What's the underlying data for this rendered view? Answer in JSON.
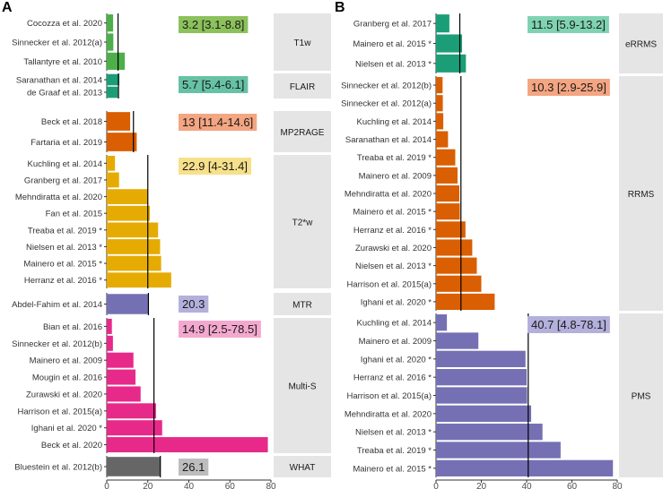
{
  "chart_data": [
    {
      "panel_label": "A",
      "type": "bar",
      "orientation": "horizontal",
      "xlim": [
        0,
        80
      ],
      "xticks": [
        0,
        20,
        40,
        60,
        80
      ],
      "facets": [
        {
          "label": "T1w",
          "summary": "3.2 [3.1-8.8]",
          "summary_color": "#8cc15b",
          "bar_color": "#4daf4a",
          "vline": 5.5,
          "studies": [
            {
              "name": "Cocozza et al. 2020",
              "value": 3.1
            },
            {
              "name": "Sinnecker et al. 2012(a)",
              "value": 3.2
            },
            {
              "name": "Tallantyre et al. 2010",
              "value": 8.8
            }
          ]
        },
        {
          "label": "FLAIR",
          "summary": "5.7 [5.4-6.1]",
          "summary_color": "#66c2a5",
          "bar_color": "#1b9e77",
          "vline": 5.7,
          "studies": [
            {
              "name": "Saranathan et al. 2014",
              "value": 6.1
            },
            {
              "name": "de Graaf et al. 2013",
              "value": 5.4
            }
          ]
        },
        {
          "label": "MP2RAGE",
          "summary": "13 [11.4-14.6]",
          "summary_color": "#f4a582",
          "bar_color": "#d95f02",
          "vline": 13,
          "studies": [
            {
              "name": "Beck et al. 2018",
              "value": 11.4
            },
            {
              "name": "Fartaria et al. 2019",
              "value": 14.6
            }
          ]
        },
        {
          "label": "T2*w",
          "summary": "22.9 [4-31.4]",
          "summary_color": "#f7e08a",
          "bar_color": "#e6ab02",
          "vline": 20,
          "studies": [
            {
              "name": "Kuchling et al. 2014",
              "value": 4
            },
            {
              "name": "Granberg et al. 2017",
              "value": 6
            },
            {
              "name": "Mehndiratta et al. 2020",
              "value": 20
            },
            {
              "name": "Fan et al. 2015",
              "value": 21
            },
            {
              "name": "Treaba et al. 2019 *",
              "value": 25
            },
            {
              "name": "Nielsen et al. 2013 *",
              "value": 26
            },
            {
              "name": "Mainero et al. 2015 *",
              "value": 26.5
            },
            {
              "name": "Herranz et al. 2016 *",
              "value": 31.4
            }
          ]
        },
        {
          "label": "MTR",
          "summary": "20.3",
          "summary_color": "#b3b0dc",
          "bar_color": "#7570b3",
          "vline": 20.3,
          "studies": [
            {
              "name": "Abdel-Fahim et al. 2014",
              "value": 20.3
            }
          ]
        },
        {
          "label": "Multi-S",
          "summary": "14.9 [2.5-78.5]",
          "summary_color": "#f4a8cf",
          "bar_color": "#e7298a",
          "vline": 23,
          "studies": [
            {
              "name": "Bian et al. 2016",
              "value": 2.5
            },
            {
              "name": "Sinnecker et al. 2012(b)",
              "value": 3
            },
            {
              "name": "Mainero et al. 2009",
              "value": 13
            },
            {
              "name": "Mougin et al. 2016",
              "value": 14
            },
            {
              "name": "Zurawski et al. 2020",
              "value": 16.5
            },
            {
              "name": "Harrison et al. 2015(a)",
              "value": 24
            },
            {
              "name": "Ighani et al. 2020 *",
              "value": 27
            },
            {
              "name": "Beck et al. 2020",
              "value": 78.5
            }
          ]
        },
        {
          "label": "WHAT",
          "summary": "26.1",
          "summary_color": "#bdbdbd",
          "bar_color": "#666666",
          "vline": 26.1,
          "studies": [
            {
              "name": "Bluestein et al. 2012(b)",
              "value": 26.1
            }
          ]
        }
      ]
    },
    {
      "panel_label": "B",
      "type": "bar",
      "orientation": "horizontal",
      "xlim": [
        0,
        80
      ],
      "xticks": [
        0,
        20,
        40,
        60,
        80
      ],
      "facets": [
        {
          "label": "eRRMS",
          "summary": "11.5 [5.9-13.2]",
          "summary_color": "#7fd3b2",
          "bar_color": "#1b9e77",
          "vline": 10.5,
          "studies": [
            {
              "name": "Granberg et al. 2017",
              "value": 5.9
            },
            {
              "name": "Mainero et al. 2015 *",
              "value": 11.5
            },
            {
              "name": "Nielsen et al. 2013 *",
              "value": 13.2
            }
          ]
        },
        {
          "label": "RRMS",
          "summary": "10.3 [2.9-25.9]",
          "summary_color": "#f4a582",
          "bar_color": "#d95f02",
          "vline": 11,
          "studies": [
            {
              "name": "Sinnecker et al. 2012(b)",
              "value": 2.9
            },
            {
              "name": "Sinnecker et al. 2012(a)",
              "value": 3
            },
            {
              "name": "Kuchling et al. 2014",
              "value": 3.2
            },
            {
              "name": "Saranathan et al. 2014",
              "value": 5.3
            },
            {
              "name": "Treaba et al. 2019 *",
              "value": 8.5
            },
            {
              "name": "Mainero et al. 2009",
              "value": 9.5
            },
            {
              "name": "Mehndiratta et al. 2020",
              "value": 10.3
            },
            {
              "name": "Mainero et al. 2015 *",
              "value": 10.5
            },
            {
              "name": "Herranz et al. 2016 *",
              "value": 13
            },
            {
              "name": "Zurawski et al. 2020",
              "value": 16
            },
            {
              "name": "Nielsen et al. 2013 *",
              "value": 18
            },
            {
              "name": "Harrison et al. 2015(a)",
              "value": 20
            },
            {
              "name": "Ighani et al. 2020 *",
              "value": 25.9
            }
          ]
        },
        {
          "label": "PMS",
          "summary": "40.7 [4.8-78.1]",
          "summary_color": "#b3b0dc",
          "bar_color": "#7570b3",
          "vline": 40.7,
          "studies": [
            {
              "name": "Kuchling et al. 2014",
              "value": 4.8
            },
            {
              "name": "Mainero et al. 2009",
              "value": 18.7
            },
            {
              "name": "Ighani et al. 2020 *",
              "value": 39.5
            },
            {
              "name": "Herranz et al. 2016 *",
              "value": 40
            },
            {
              "name": "Harrison et al. 2015(a)",
              "value": 40.2
            },
            {
              "name": "Mehndiratta et al. 2020",
              "value": 42
            },
            {
              "name": "Nielsen et al. 2013 *",
              "value": 47
            },
            {
              "name": "Treaba et al. 2019 *",
              "value": 55
            },
            {
              "name": "Mainero et al. 2015 *",
              "value": 78.1
            }
          ]
        }
      ]
    }
  ]
}
